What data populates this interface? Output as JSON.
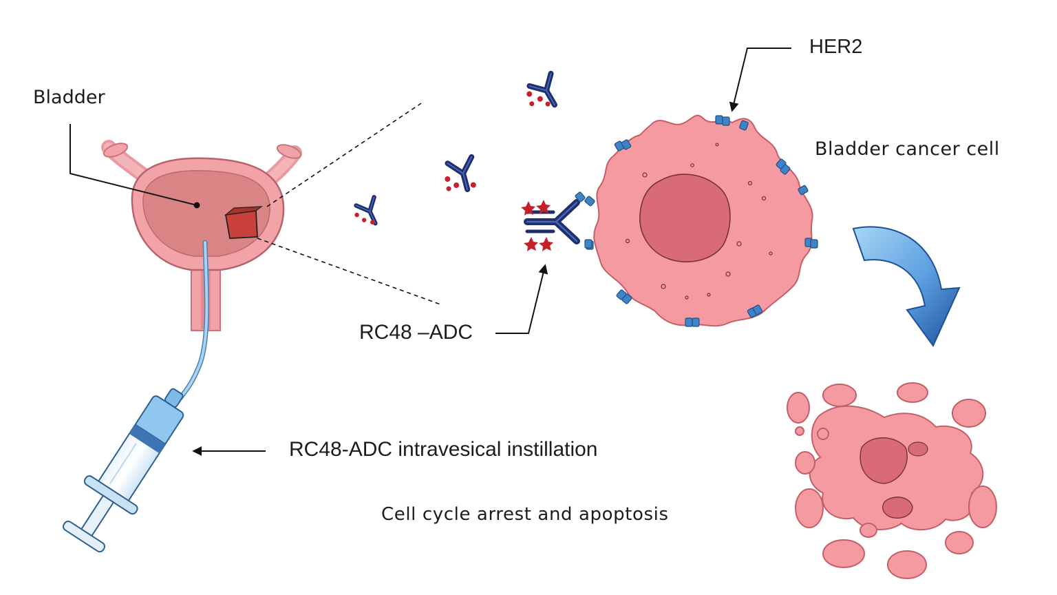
{
  "labels": {
    "bladder": "Bladder",
    "her2": "HER2",
    "cancer_cell": "Bladder cancer cell",
    "adc": "RC48 –ADC",
    "instillation": "RC48-ADC intravesical instillation",
    "outcome": "Cell cycle arrest and apoptosis"
  },
  "colors": {
    "bladder_wall": "#f2a3a8",
    "bladder_lumen": "#d98585",
    "tumor": "#c9413a",
    "cell_body": "#f49aa0",
    "nucleus": "#d96a78",
    "antibody": "#1e2f6e",
    "payload": "#c8202a",
    "receptor": "#3f84c8",
    "syringe_blue": "#8fc7ee",
    "catheter": "#7fb6e3",
    "arrow_light": "#8cc6f0",
    "arrow_dark": "#1f5ca8",
    "line": "#111111"
  }
}
